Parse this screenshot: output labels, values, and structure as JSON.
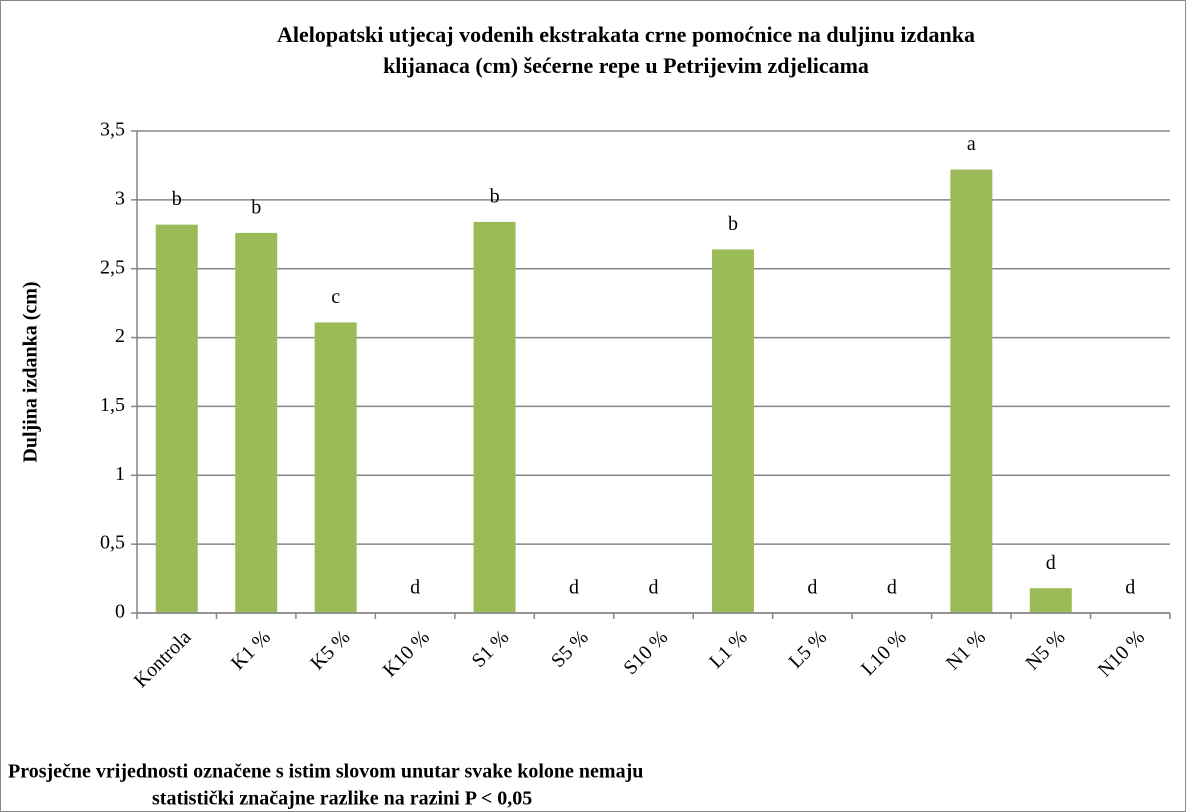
{
  "chart_data": {
    "type": "bar",
    "title": [
      "Alelopatski utjecaj vodenih ekstrakata crne pomoćnice na duljinu izdanka",
      "klijanaca (cm) šećerne repe u Petrijevim zdjelicama"
    ],
    "y_label": "Duljina izdanka (cm)",
    "categories": [
      "Kontrola",
      "K1 %",
      "K5 %",
      "K10 %",
      "S1 %",
      "S5 %",
      "S10 %",
      "L1 %",
      "L5 %",
      "L10 %",
      "N1 %",
      "N5 %",
      "N10 %"
    ],
    "values": [
      2.82,
      2.76,
      2.11,
      0,
      2.84,
      0,
      0,
      2.64,
      0,
      0,
      3.22,
      0.18,
      0
    ],
    "annotations": [
      "b",
      "b",
      "c",
      "d",
      "b",
      "d",
      "d",
      "b",
      "d",
      "d",
      "a",
      "d",
      "d"
    ],
    "color": "#9bbb59",
    "ylim": [
      0,
      3.5
    ],
    "yticks": [
      0,
      {
        "value": 0.5,
        "label": "0,5"
      },
      1,
      {
        "value": 1.5,
        "label": "1,5"
      },
      2,
      {
        "value": 2.5,
        "label": "2,5"
      },
      3,
      {
        "value": 3.5,
        "label": "3,5"
      }
    ],
    "grid": true,
    "footnote": [
      "Prosječne vrijednosti označene s istim slovom unutar svake kolone nemaju",
      "statistički značajne razlike na razini P < 0,05"
    ]
  }
}
